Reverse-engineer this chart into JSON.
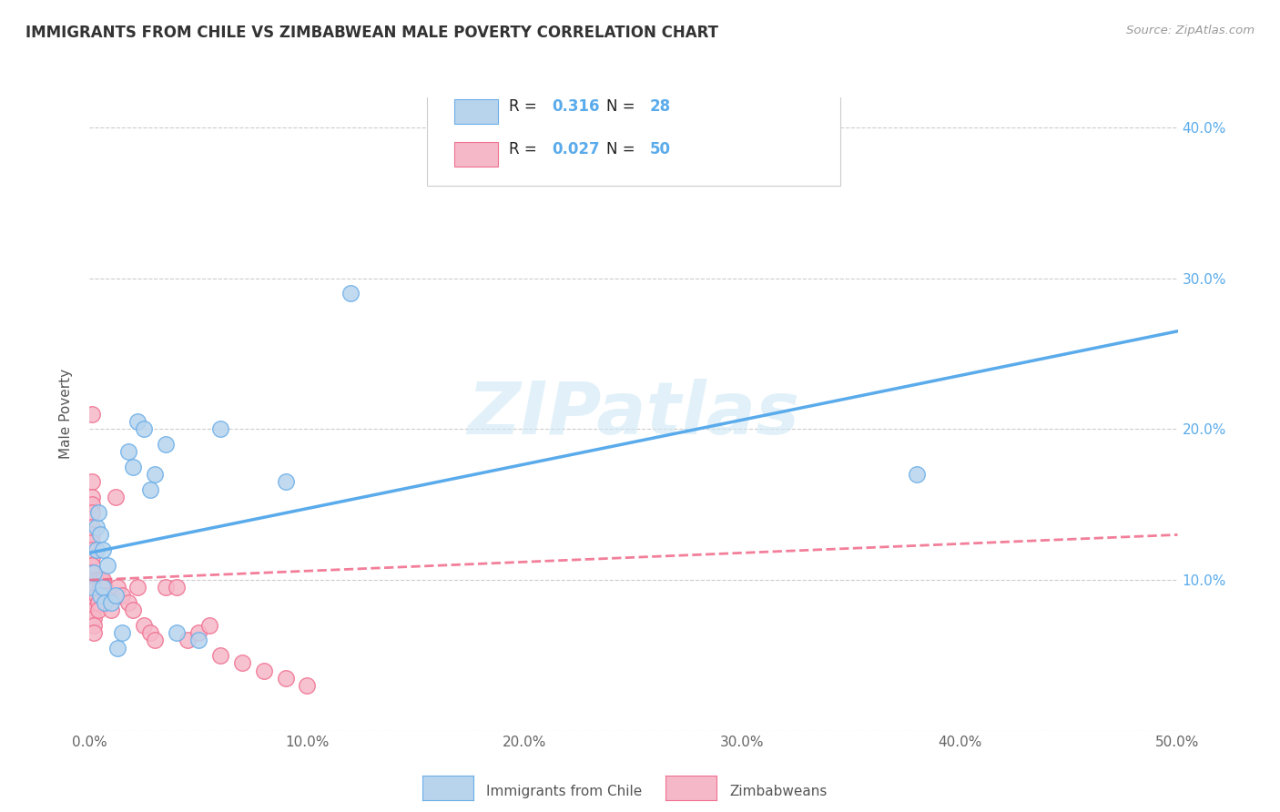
{
  "title": "IMMIGRANTS FROM CHILE VS ZIMBABWEAN MALE POVERTY CORRELATION CHART",
  "source": "Source: ZipAtlas.com",
  "ylabel": "Male Poverty",
  "xlim": [
    0.0,
    0.5
  ],
  "ylim": [
    0.0,
    0.42
  ],
  "xticks": [
    0.0,
    0.1,
    0.2,
    0.3,
    0.4,
    0.5
  ],
  "yticks": [
    0.0,
    0.1,
    0.2,
    0.3,
    0.4
  ],
  "xtick_labels": [
    "0.0%",
    "10.0%",
    "20.0%",
    "30.0%",
    "40.0%",
    "50.0%"
  ],
  "ytick_labels": [
    "",
    "10.0%",
    "20.0%",
    "30.0%",
    "40.0%"
  ],
  "watermark": "ZIPatlas",
  "chile_R": 0.316,
  "chile_N": 28,
  "zimb_R": 0.027,
  "zimb_N": 50,
  "chile_color": "#b8d4ed",
  "zimb_color": "#f5b8c8",
  "chile_edge_color": "#6aaee8",
  "zimb_edge_color": "#f07090",
  "chile_line_color": "#5aabeb",
  "zimb_line_color": "#f06888",
  "legend_label_chile": "Immigrants from Chile",
  "legend_label_zimb": "Zimbabweans",
  "chile_x": [
    0.001,
    0.002,
    0.003,
    0.003,
    0.004,
    0.005,
    0.005,
    0.006,
    0.006,
    0.007,
    0.008,
    0.01,
    0.012,
    0.013,
    0.015,
    0.018,
    0.02,
    0.022,
    0.025,
    0.028,
    0.03,
    0.035,
    0.04,
    0.05,
    0.06,
    0.09,
    0.12,
    0.38
  ],
  "chile_y": [
    0.095,
    0.105,
    0.135,
    0.12,
    0.145,
    0.09,
    0.13,
    0.12,
    0.095,
    0.085,
    0.11,
    0.085,
    0.09,
    0.055,
    0.065,
    0.185,
    0.175,
    0.205,
    0.2,
    0.16,
    0.17,
    0.19,
    0.065,
    0.06,
    0.2,
    0.165,
    0.29,
    0.17
  ],
  "zimb_x": [
    0.001,
    0.001,
    0.001,
    0.001,
    0.001,
    0.001,
    0.001,
    0.001,
    0.001,
    0.001,
    0.001,
    0.001,
    0.001,
    0.001,
    0.001,
    0.002,
    0.002,
    0.002,
    0.002,
    0.002,
    0.003,
    0.003,
    0.003,
    0.004,
    0.004,
    0.005,
    0.005,
    0.006,
    0.007,
    0.008,
    0.01,
    0.012,
    0.013,
    0.015,
    0.018,
    0.02,
    0.022,
    0.025,
    0.028,
    0.03,
    0.035,
    0.04,
    0.045,
    0.05,
    0.055,
    0.06,
    0.07,
    0.08,
    0.09,
    0.1
  ],
  "zimb_y": [
    0.21,
    0.165,
    0.155,
    0.15,
    0.145,
    0.135,
    0.13,
    0.125,
    0.12,
    0.115,
    0.11,
    0.105,
    0.1,
    0.095,
    0.09,
    0.085,
    0.08,
    0.075,
    0.07,
    0.065,
    0.1,
    0.095,
    0.09,
    0.085,
    0.08,
    0.1,
    0.095,
    0.1,
    0.095,
    0.09,
    0.08,
    0.155,
    0.095,
    0.09,
    0.085,
    0.08,
    0.095,
    0.07,
    0.065,
    0.06,
    0.095,
    0.095,
    0.06,
    0.065,
    0.07,
    0.05,
    0.045,
    0.04,
    0.035,
    0.03
  ],
  "chile_trend_x0": 0.0,
  "chile_trend_y0": 0.118,
  "chile_trend_x1": 0.5,
  "chile_trend_y1": 0.265,
  "zimb_trend_x0": 0.0,
  "zimb_trend_y0": 0.1,
  "zimb_trend_x1": 0.5,
  "zimb_trend_y1": 0.13
}
